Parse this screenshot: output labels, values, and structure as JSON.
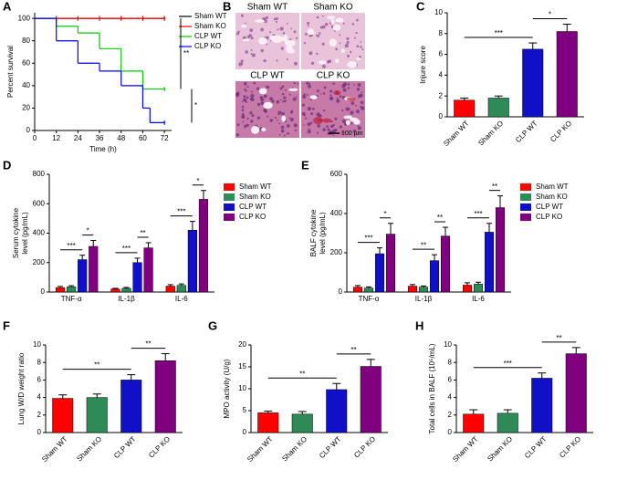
{
  "chart_data": [
    {
      "label": "A",
      "type": "line",
      "xlabel": "Time (h)",
      "ylabel": "Percent survival",
      "xlim": [
        0,
        76
      ],
      "ylim": [
        0,
        105
      ],
      "xticks": [
        0,
        12,
        24,
        36,
        48,
        60,
        72
      ],
      "yticks": [
        0,
        20,
        40,
        60,
        80,
        100
      ],
      "series": [
        {
          "name": "Sham WT",
          "color": "#000000",
          "x": [
            0,
            12,
            24,
            36,
            48,
            60,
            72
          ],
          "values": [
            100,
            100,
            100,
            100,
            100,
            100,
            100
          ]
        },
        {
          "name": "Sham KO",
          "color": "#ff0000",
          "x": [
            0,
            12,
            24,
            36,
            48,
            60,
            72
          ],
          "values": [
            100,
            100,
            100,
            100,
            100,
            100,
            100
          ]
        },
        {
          "name": "CLP WT",
          "color": "#00cc00",
          "x": [
            0,
            12,
            24,
            36,
            48,
            60,
            72
          ],
          "values": [
            100,
            93,
            87,
            73,
            53,
            37,
            37
          ]
        },
        {
          "name": "CLP KO",
          "color": "#0000ff",
          "x": [
            0,
            12,
            24,
            36,
            48,
            60,
            64,
            72
          ],
          "values": [
            100,
            80,
            60,
            53,
            40,
            20,
            7,
            7
          ]
        }
      ],
      "annotations": [
        {
          "text": "**",
          "between": [
            "Sham KO",
            "CLP WT"
          ]
        },
        {
          "text": "*",
          "between": [
            "CLP WT",
            "CLP KO"
          ]
        }
      ]
    },
    {
      "label": "B",
      "type": "image",
      "panels": [
        "Sham WT",
        "Sham KO",
        "CLP WT",
        "CLP KO"
      ],
      "scale_bar": "100 μm"
    },
    {
      "label": "C",
      "type": "bar",
      "ylabel": "Injure score",
      "categories": [
        "Sham WT",
        "Sham KO",
        "CLP WT",
        "CLP KO"
      ],
      "colors": [
        "#ff0000",
        "#2e8b57",
        "#1010c8",
        "#800080"
      ],
      "values": [
        1.6,
        1.8,
        6.5,
        8.2
      ],
      "errors": [
        0.2,
        0.2,
        0.6,
        0.7
      ],
      "ylim": [
        0,
        10
      ],
      "yticks": [
        0,
        2,
        4,
        6,
        8,
        10
      ],
      "annotations": [
        {
          "text": "***",
          "between": [
            "Sham WT",
            "CLP WT"
          ]
        },
        {
          "text": "*",
          "between": [
            "CLP WT",
            "CLP KO"
          ]
        }
      ]
    },
    {
      "label": "D",
      "type": "bar",
      "ylabel": [
        "Serum cytokine",
        "level (pg/mL)"
      ],
      "categories": [
        "TNF-α",
        "IL-1β",
        "IL-6"
      ],
      "ylim": [
        0,
        800
      ],
      "yticks": [
        0,
        200,
        400,
        600,
        800
      ],
      "series": [
        {
          "name": "Sham WT",
          "color": "#ff0000",
          "values": [
            30,
            20,
            40
          ],
          "errors": [
            8,
            5,
            10
          ]
        },
        {
          "name": "Sham KO",
          "color": "#2e8b57",
          "values": [
            35,
            25,
            45
          ],
          "errors": [
            8,
            6,
            10
          ]
        },
        {
          "name": "CLP WT",
          "color": "#1010c8",
          "values": [
            220,
            200,
            420
          ],
          "errors": [
            30,
            30,
            60
          ]
        },
        {
          "name": "CLP KO",
          "color": "#800080",
          "values": [
            310,
            300,
            630
          ],
          "errors": [
            40,
            35,
            60
          ]
        }
      ],
      "annotations": [
        {
          "text": "***",
          "category": "TNF-α",
          "between": [
            "Sham WT",
            "CLP WT"
          ]
        },
        {
          "text": "*",
          "category": "TNF-α",
          "between": [
            "CLP WT",
            "CLP KO"
          ]
        },
        {
          "text": "***",
          "category": "IL-1β",
          "between": [
            "Sham WT",
            "CLP WT"
          ]
        },
        {
          "text": "**",
          "category": "IL-1β",
          "between": [
            "CLP WT",
            "CLP KO"
          ]
        },
        {
          "text": "***",
          "category": "IL-6",
          "between": [
            "Sham WT",
            "CLP WT"
          ]
        },
        {
          "text": "*",
          "category": "IL-6",
          "between": [
            "CLP WT",
            "CLP KO"
          ]
        }
      ]
    },
    {
      "label": "E",
      "type": "bar",
      "ylabel": [
        "BALF cytokine",
        "level (pg/mL)"
      ],
      "categories": [
        "TNF-α",
        "IL-1β",
        "IL-6"
      ],
      "ylim": [
        0,
        600
      ],
      "yticks": [
        0,
        200,
        400,
        600
      ],
      "series": [
        {
          "name": "Sham WT",
          "color": "#ff0000",
          "values": [
            25,
            30,
            35
          ],
          "errors": [
            8,
            8,
            12
          ]
        },
        {
          "name": "Sham KO",
          "color": "#2e8b57",
          "values": [
            20,
            25,
            40
          ],
          "errors": [
            6,
            6,
            10
          ]
        },
        {
          "name": "CLP WT",
          "color": "#1010c8",
          "values": [
            195,
            160,
            305
          ],
          "errors": [
            30,
            30,
            45
          ]
        },
        {
          "name": "CLP KO",
          "color": "#800080",
          "values": [
            295,
            285,
            430
          ],
          "errors": [
            55,
            45,
            60
          ]
        }
      ],
      "annotations": [
        {
          "text": "***",
          "category": "TNF-α",
          "between": [
            "Sham WT",
            "CLP WT"
          ]
        },
        {
          "text": "*",
          "category": "TNF-α",
          "between": [
            "CLP WT",
            "CLP KO"
          ]
        },
        {
          "text": "**",
          "category": "IL-1β",
          "between": [
            "Sham WT",
            "CLP WT"
          ]
        },
        {
          "text": "**",
          "category": "IL-1β",
          "between": [
            "CLP WT",
            "CLP KO"
          ]
        },
        {
          "text": "***",
          "category": "IL-6",
          "between": [
            "Sham WT",
            "CLP WT"
          ]
        },
        {
          "text": "**",
          "category": "IL-6",
          "between": [
            "CLP WT",
            "CLP KO"
          ]
        }
      ]
    },
    {
      "label": "F",
      "type": "bar",
      "ylabel": "Lung W/D weight ratio",
      "categories": [
        "Sham WT",
        "Sham KO",
        "CLP WT",
        "CLP KO"
      ],
      "colors": [
        "#ff0000",
        "#2e8b57",
        "#1010c8",
        "#800080"
      ],
      "values": [
        3.9,
        4.0,
        6.0,
        8.2
      ],
      "errors": [
        0.4,
        0.4,
        0.6,
        0.8
      ],
      "ylim": [
        0,
        10
      ],
      "yticks": [
        0,
        2,
        4,
        6,
        8,
        10
      ],
      "annotations": [
        {
          "text": "**",
          "between": [
            "Sham WT",
            "CLP WT"
          ]
        },
        {
          "text": "**",
          "between": [
            "CLP WT",
            "CLP KO"
          ]
        }
      ]
    },
    {
      "label": "G",
      "type": "bar",
      "ylabel": "MPO activity (U/g)",
      "categories": [
        "Sham WT",
        "Sham KO",
        "CLP WT",
        "CLP KO"
      ],
      "colors": [
        "#ff0000",
        "#2e8b57",
        "#1010c8",
        "#800080"
      ],
      "values": [
        4.5,
        4.2,
        9.8,
        15.1
      ],
      "errors": [
        0.4,
        0.6,
        1.4,
        1.6
      ],
      "ylim": [
        0,
        20
      ],
      "yticks": [
        0,
        5,
        10,
        15,
        20
      ],
      "annotations": [
        {
          "text": "**",
          "between": [
            "Sham WT",
            "CLP WT"
          ]
        },
        {
          "text": "**",
          "between": [
            "CLP WT",
            "CLP KO"
          ]
        }
      ]
    },
    {
      "label": "H",
      "type": "bar",
      "ylabel": "Total cells in BALF (10⁵/mL)",
      "categories": [
        "Sham WT",
        "Sham KO",
        "CLP WT",
        "CLP KO"
      ],
      "colors": [
        "#ff0000",
        "#2e8b57",
        "#1010c8",
        "#800080"
      ],
      "values": [
        2.1,
        2.2,
        6.2,
        9.0
      ],
      "errors": [
        0.5,
        0.4,
        0.6,
        0.7
      ],
      "ylim": [
        0,
        10
      ],
      "yticks": [
        0,
        2,
        4,
        6,
        8,
        10
      ],
      "annotations": [
        {
          "text": "***",
          "between": [
            "Sham WT",
            "CLP WT"
          ]
        },
        {
          "text": "**",
          "between": [
            "CLP WT",
            "CLP KO"
          ]
        }
      ]
    }
  ]
}
